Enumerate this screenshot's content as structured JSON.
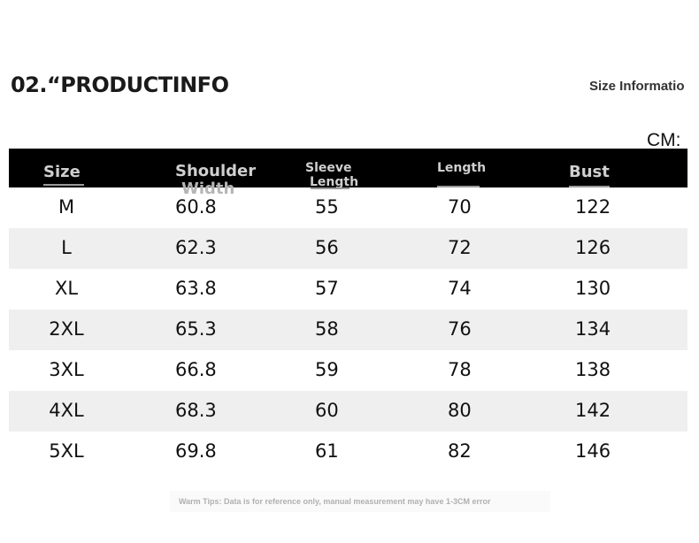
{
  "title": "02.“PRODUCTINFO",
  "size_info_label": "Size Informatio",
  "unit": "CM:",
  "table": {
    "headers": {
      "size": "Size",
      "shoulder_line1": "Shoulder",
      "shoulder_line2": "Width",
      "sleeve_line1": "Sleeve",
      "sleeve_line2": "Length",
      "length": "Length",
      "bust": "Bust"
    },
    "rows": [
      {
        "size": "M",
        "shoulder": "60.8",
        "sleeve": "55",
        "length": "70",
        "bust": "122"
      },
      {
        "size": "L",
        "shoulder": "62.3",
        "sleeve": "56",
        "length": "72",
        "bust": "126"
      },
      {
        "size": "XL",
        "shoulder": "63.8",
        "sleeve": "57",
        "length": "74",
        "bust": "130"
      },
      {
        "size": "2XL",
        "shoulder": "65.3",
        "sleeve": "58",
        "length": "76",
        "bust": "134"
      },
      {
        "size": "3XL",
        "shoulder": "66.8",
        "sleeve": "59",
        "length": "78",
        "bust": "138"
      },
      {
        "size": "4XL",
        "shoulder": "68.3",
        "sleeve": "60",
        "length": "80",
        "bust": "142"
      },
      {
        "size": "5XL",
        "shoulder": "69.8",
        "sleeve": "61",
        "length": "82",
        "bust": "146"
      }
    ]
  },
  "tips": "Warm Tips: Data is for reference only, manual measurement may have 1-3CM error"
}
